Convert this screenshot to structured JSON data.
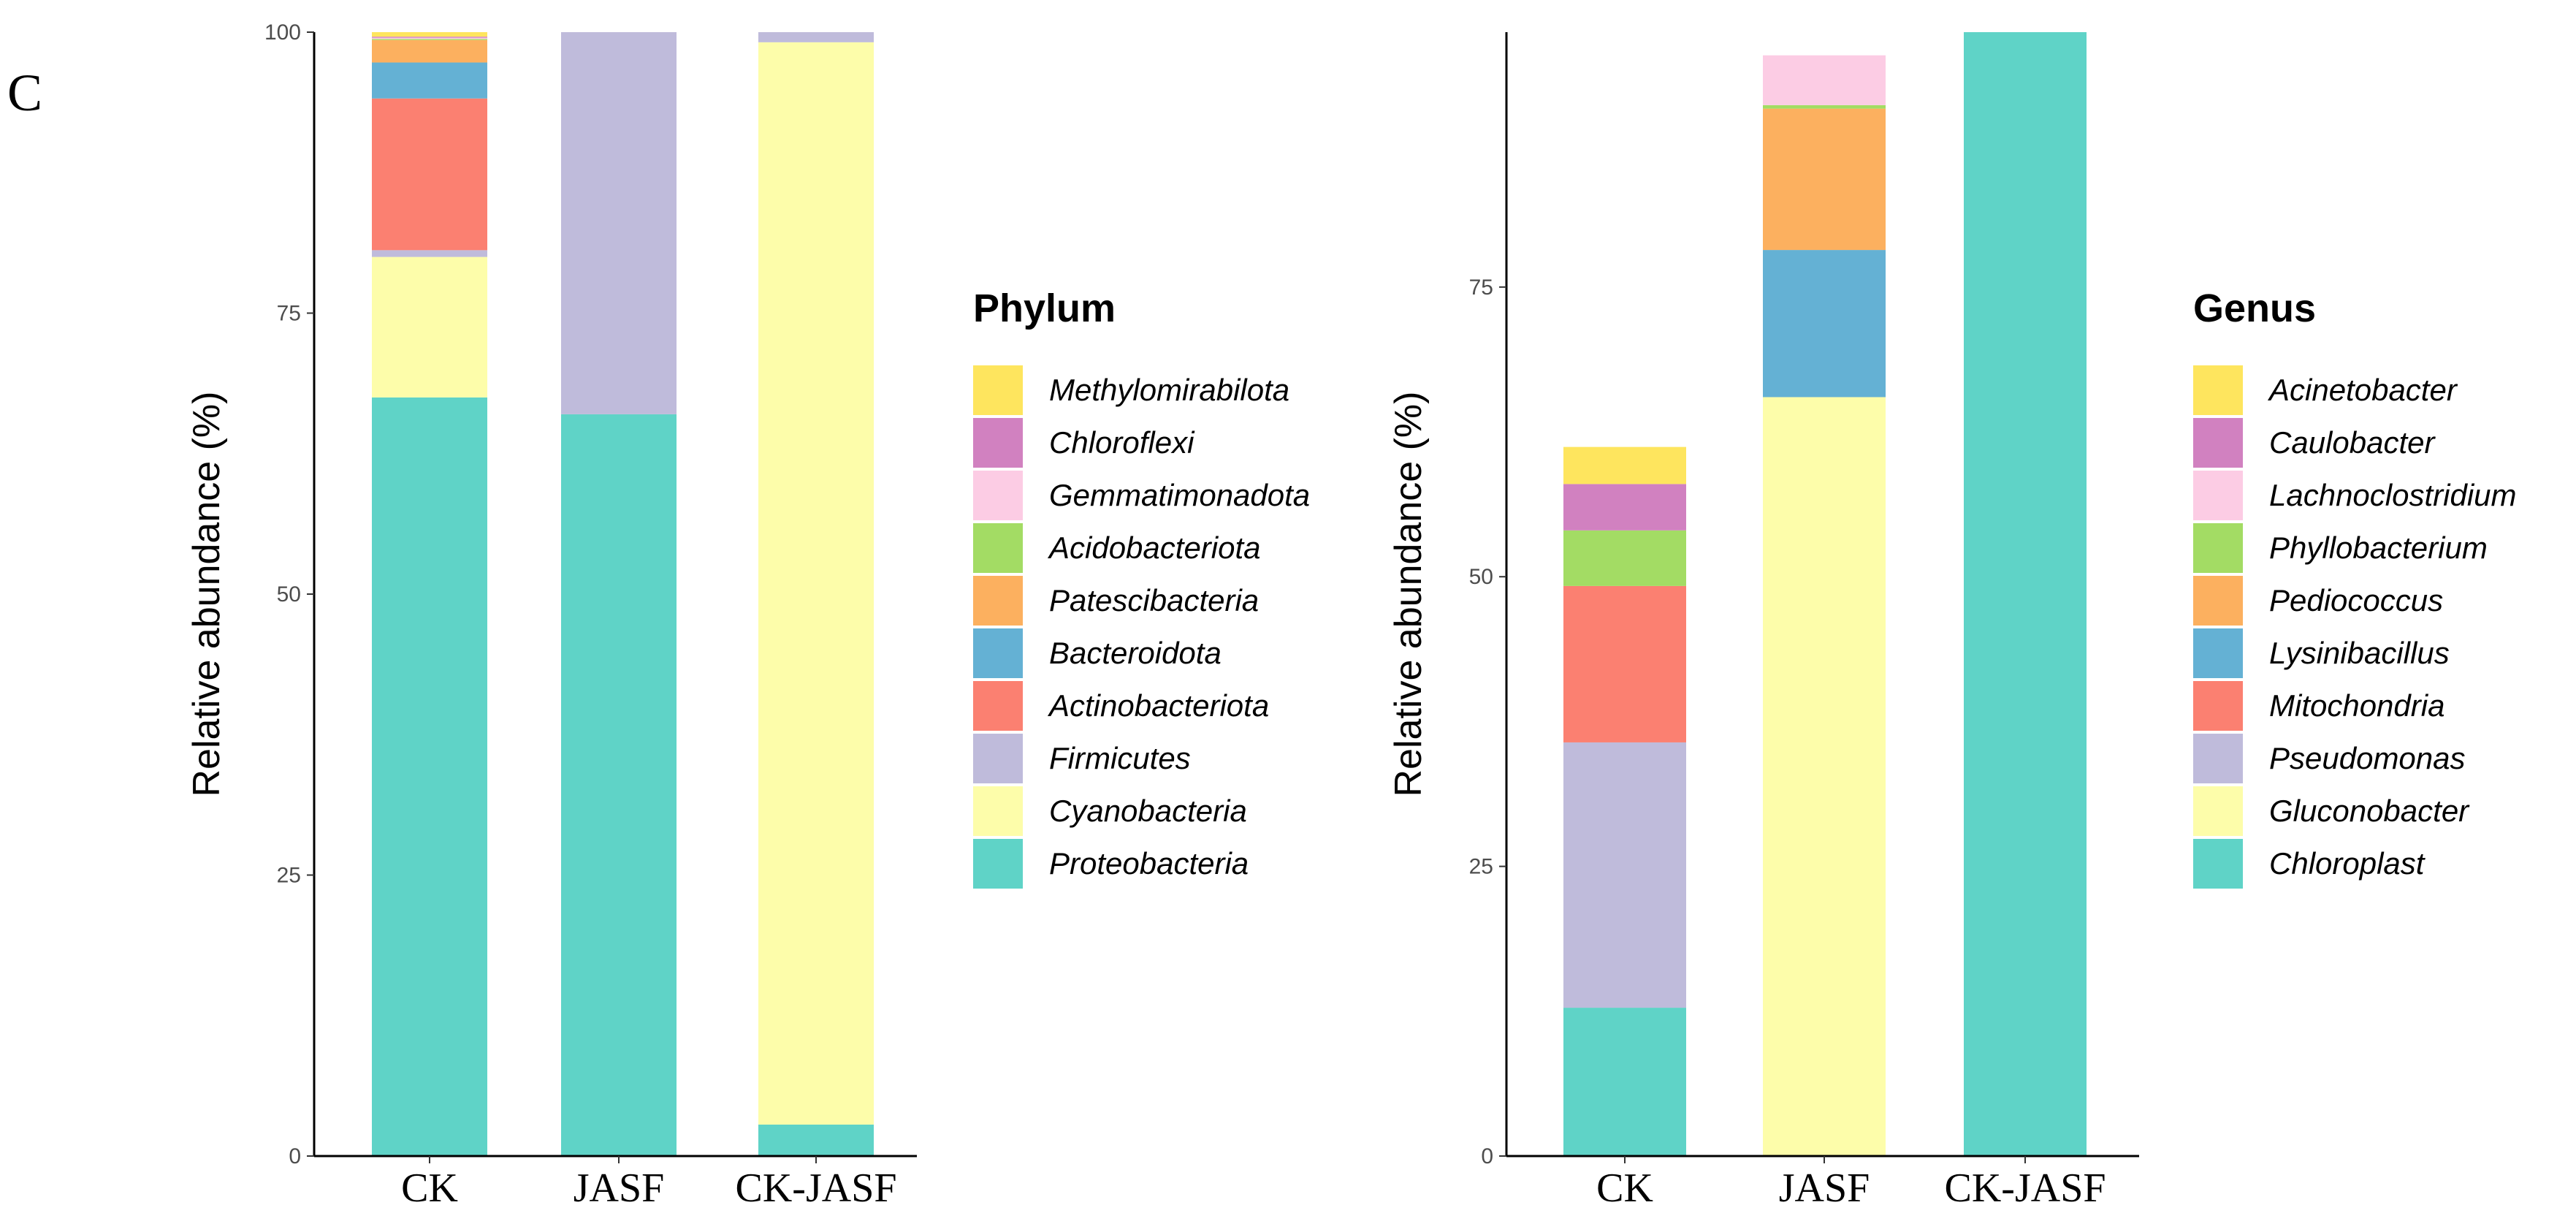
{
  "panel_label": "C",
  "colors": {
    "Proteobacteria": "#5fd3c7",
    "Cyanobacteria": "#fdfdaa",
    "Firmicutes": "#bfbbdb",
    "Actinobacteriota": "#fb8071",
    "Bacteroidota": "#64b1d4",
    "Patescibacteria": "#fcb05f",
    "Acidobacteriota": "#a3dc64",
    "Gemmatimonadota": "#fccce4",
    "Chloroflexi": "#d181c0",
    "Methylomirabilota": "#fee55e"
  },
  "chart_data": [
    {
      "type": "bar",
      "stacked": true,
      "title": "",
      "xlabel": "",
      "ylabel": "Relative abundance (%)",
      "ylim": [
        0,
        100
      ],
      "yticks": [
        0,
        25,
        50,
        75,
        100
      ],
      "categories": [
        "CK",
        "JASF",
        "CK-JASF"
      ],
      "legend_title": "Phylum",
      "legend_position": "right",
      "legend_order": [
        "Methylomirabilota",
        "Chloroflexi",
        "Gemmatimonadota",
        "Acidobacteriota",
        "Patescibacteria",
        "Bacteroidota",
        "Actinobacteriota",
        "Firmicutes",
        "Cyanobacteria",
        "Proteobacteria"
      ],
      "series": [
        {
          "name": "Proteobacteria",
          "color": "#5fd3c7",
          "values": [
            67.5,
            66.0,
            2.8
          ]
        },
        {
          "name": "Cyanobacteria",
          "color": "#fdfdaa",
          "values": [
            12.5,
            0.0,
            96.3
          ]
        },
        {
          "name": "Firmicutes",
          "color": "#bfbbdb",
          "values": [
            0.6,
            34.0,
            0.9
          ]
        },
        {
          "name": "Actinobacteriota",
          "color": "#fb8071",
          "values": [
            13.5,
            0.0,
            0.0
          ]
        },
        {
          "name": "Bacteroidota",
          "color": "#64b1d4",
          "values": [
            3.2,
            0.0,
            0.0
          ]
        },
        {
          "name": "Patescibacteria",
          "color": "#fcb05f",
          "values": [
            2.0,
            0.0,
            0.0
          ]
        },
        {
          "name": "Acidobacteriota",
          "color": "#a3dc64",
          "values": [
            0.1,
            0.0,
            0.0
          ]
        },
        {
          "name": "Gemmatimonadota",
          "color": "#fccce4",
          "values": [
            0.1,
            0.0,
            0.0
          ]
        },
        {
          "name": "Chloroflexi",
          "color": "#d181c0",
          "values": [
            0.1,
            0.0,
            0.0
          ]
        },
        {
          "name": "Methylomirabilota",
          "color": "#fee55e",
          "values": [
            0.4,
            0.0,
            0.0
          ]
        }
      ]
    },
    {
      "type": "bar",
      "stacked": true,
      "title": "",
      "xlabel": "",
      "ylabel": "Relative abundance (%)",
      "ylim": [
        0,
        97
      ],
      "yticks": [
        0,
        25,
        50,
        75
      ],
      "categories": [
        "CK",
        "JASF",
        "CK-JASF"
      ],
      "legend_title": "Genus",
      "legend_position": "right",
      "legend_order": [
        "Acinetobacter",
        "Caulobacter",
        "Lachnoclostridium",
        "Phyllobacterium",
        "Pediococcus",
        "Lysinibacillus",
        "Mitochondria",
        "Pseudomonas",
        "Gluconobacter",
        "Chloroplast"
      ],
      "series": [
        {
          "name": "Chloroplast",
          "color": "#5fd3c7",
          "values": [
            12.8,
            0.0,
            97.0
          ]
        },
        {
          "name": "Gluconobacter",
          "color": "#fdfdaa",
          "values": [
            0.0,
            65.5,
            0.0
          ]
        },
        {
          "name": "Pseudomonas",
          "color": "#bfbbdb",
          "values": [
            22.9,
            0.0,
            0.0
          ]
        },
        {
          "name": "Mitochondria",
          "color": "#fb8071",
          "values": [
            13.5,
            0.0,
            0.0
          ]
        },
        {
          "name": "Lysinibacillus",
          "color": "#64b1d4",
          "values": [
            0.0,
            12.7,
            0.0
          ]
        },
        {
          "name": "Pediococcus",
          "color": "#fcb05f",
          "values": [
            0.0,
            12.2,
            0.0
          ]
        },
        {
          "name": "Phyllobacterium",
          "color": "#a3dc64",
          "values": [
            4.8,
            0.3,
            0.0
          ]
        },
        {
          "name": "Lachnoclostridium",
          "color": "#fccce4",
          "values": [
            0.0,
            4.3,
            0.0
          ]
        },
        {
          "name": "Caulobacter",
          "color": "#d181c0",
          "values": [
            4.0,
            0.0,
            0.0
          ]
        },
        {
          "name": "Acinetobacter",
          "color": "#fee55e",
          "values": [
            3.2,
            0.0,
            0.0
          ]
        }
      ]
    }
  ]
}
